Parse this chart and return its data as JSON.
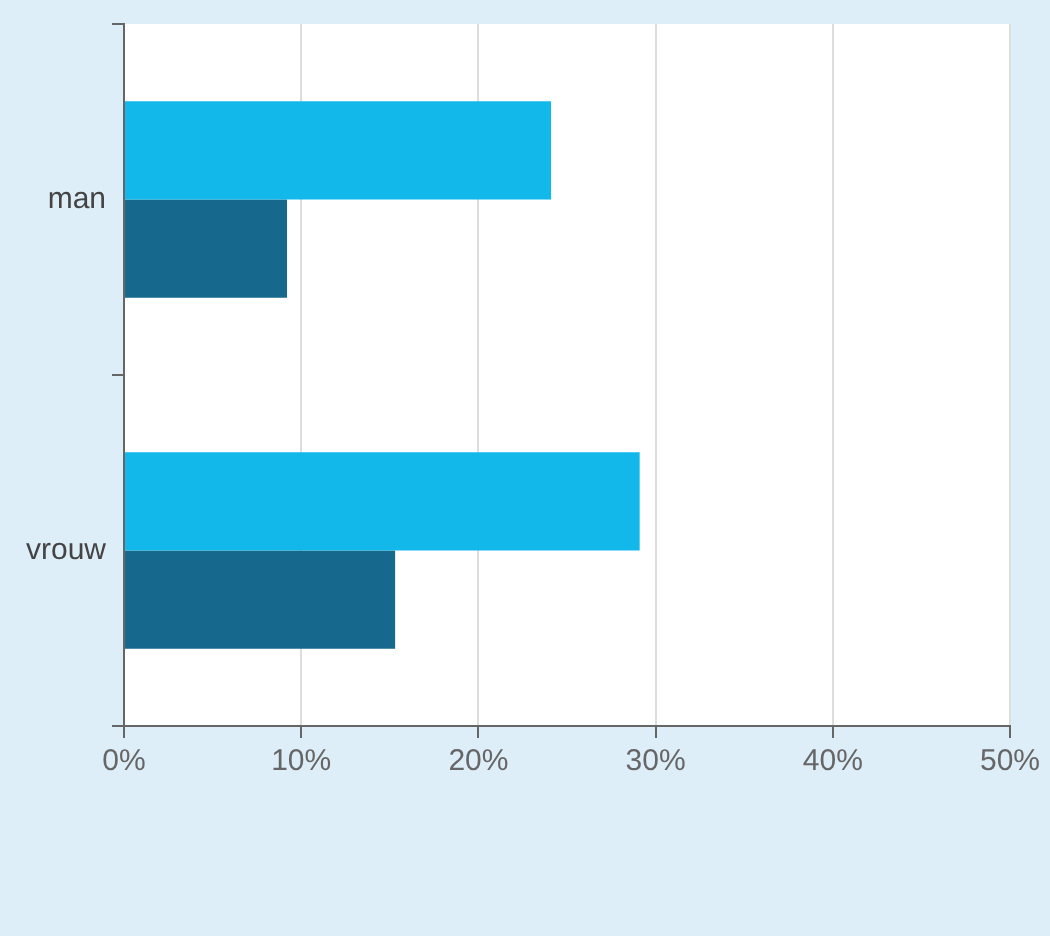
{
  "chart_data": {
    "type": "bar",
    "orientation": "horizontal",
    "categories": [
      "man",
      "vrouw"
    ],
    "series": [
      {
        "color": "#13b8ea",
        "values": [
          24.1,
          29.1
        ]
      },
      {
        "color": "#16698c",
        "values": [
          9.2,
          15.3
        ]
      }
    ],
    "xlim": [
      0,
      50
    ],
    "xticks": [
      {
        "value": 0,
        "label": "0%"
      },
      {
        "value": 10,
        "label": "10%"
      },
      {
        "value": 20,
        "label": "20%"
      },
      {
        "value": 30,
        "label": "30%"
      },
      {
        "value": 40,
        "label": "40%"
      },
      {
        "value": 50,
        "label": "50%"
      }
    ],
    "grid": "x",
    "legend": false
  }
}
